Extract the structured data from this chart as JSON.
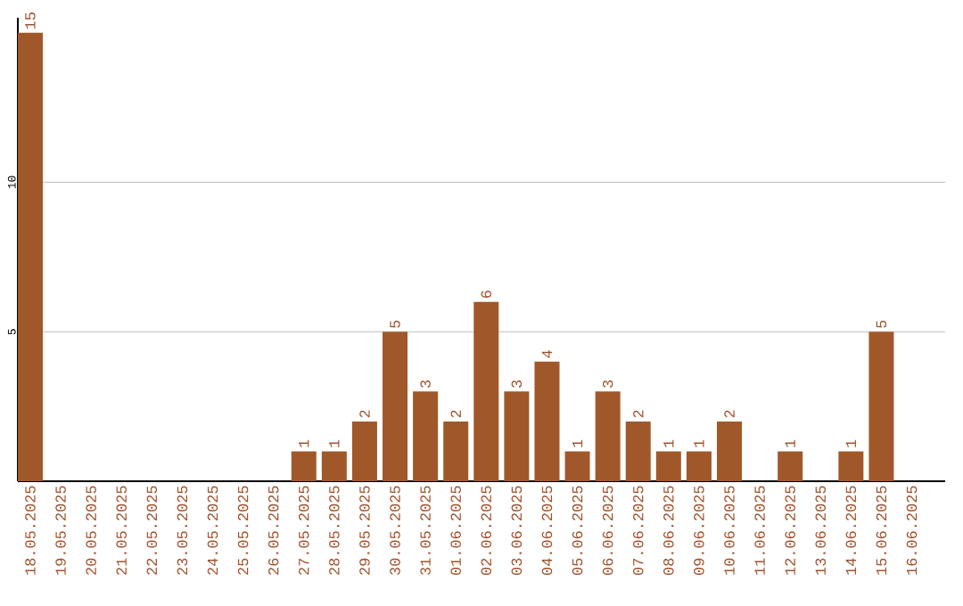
{
  "chart_data": {
    "type": "bar",
    "categories": [
      "18.05.2025",
      "19.05.2025",
      "20.05.2025",
      "21.05.2025",
      "22.05.2025",
      "23.05.2025",
      "24.05.2025",
      "25.05.2025",
      "26.05.2025",
      "27.05.2025",
      "28.05.2025",
      "29.05.2025",
      "30.05.2025",
      "31.05.2025",
      "01.06.2025",
      "02.06.2025",
      "03.06.2025",
      "04.06.2025",
      "05.06.2025",
      "06.06.2025",
      "07.06.2025",
      "08.06.2025",
      "09.06.2025",
      "10.06.2025",
      "11.06.2025",
      "12.06.2025",
      "13.06.2025",
      "14.06.2025",
      "15.06.2025",
      "16.06.2025"
    ],
    "values": [
      15,
      0,
      0,
      0,
      0,
      0,
      0,
      0,
      0,
      1,
      1,
      2,
      5,
      3,
      2,
      6,
      3,
      4,
      1,
      3,
      2,
      1,
      1,
      2,
      0,
      1,
      0,
      1,
      5,
      0
    ],
    "value_labels": [
      "15",
      null,
      null,
      null,
      null,
      null,
      null,
      null,
      null,
      "1",
      "1",
      "2",
      "5",
      "3",
      "2",
      "6",
      "3",
      "4",
      "1",
      "3",
      "2",
      "1",
      "1",
      "2",
      null,
      "1",
      null,
      "1",
      "5",
      null
    ],
    "color": "#a0582a",
    "ylim": [
      0,
      15.5
    ],
    "yticks": [
      5,
      10
    ],
    "grid": "y"
  }
}
